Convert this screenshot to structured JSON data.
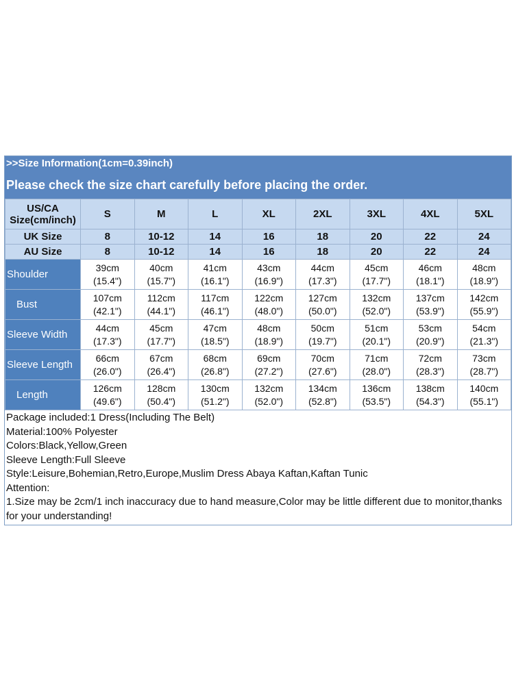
{
  "banner": {
    "line1": ">>Size Information(1cm=0.39inch)",
    "line2": "Please check the size chart carefully before placing the order."
  },
  "header": {
    "us_label_line1": "US/CA",
    "us_label_line2": "Size(cm/inch)",
    "sizes": [
      "S",
      "M",
      "L",
      "XL",
      "2XL",
      "3XL",
      "4XL",
      "5XL"
    ]
  },
  "uk": {
    "label": "UK Size",
    "values": [
      "8",
      "10-12",
      "14",
      "16",
      "18",
      "20",
      "22",
      "24"
    ]
  },
  "au": {
    "label": "AU Size",
    "values": [
      "8",
      "10-12",
      "14",
      "16",
      "18",
      "20",
      "22",
      "24"
    ]
  },
  "measurements": [
    {
      "label": "Shoulder",
      "cm": [
        "39cm",
        "40cm",
        "41cm",
        "43cm",
        "44cm",
        "45cm",
        "46cm",
        "48cm"
      ],
      "in": [
        "(15.4\")",
        "(15.7\")",
        "(16.1\")",
        "(16.9\")",
        "(17.3\")",
        "(17.7\")",
        "(18.1\")",
        "(18.9\")"
      ]
    },
    {
      "label": "Bust",
      "cm": [
        "107cm",
        "112cm",
        "117cm",
        "122cm",
        "127cm",
        "132cm",
        "137cm",
        "142cm"
      ],
      "in": [
        "(42.1\")",
        "(44.1\")",
        "(46.1\")",
        "(48.0\")",
        "(50.0\")",
        "(52.0\")",
        "(53.9\")",
        "(55.9\")"
      ]
    },
    {
      "label": "Sleeve Width",
      "cm": [
        "44cm",
        "45cm",
        "47cm",
        "48cm",
        "50cm",
        "51cm",
        "53cm",
        "54cm"
      ],
      "in": [
        "(17.3\")",
        "(17.7\")",
        "(18.5\")",
        "(18.9\")",
        "(19.7\")",
        "(20.1\")",
        "(20.9\")",
        "(21.3\")"
      ]
    },
    {
      "label": "Sleeve Length",
      "cm": [
        "66cm",
        "67cm",
        "68cm",
        "69cm",
        "70cm",
        "71cm",
        "72cm",
        "73cm"
      ],
      "in": [
        "(26.0\")",
        "(26.4\")",
        "(26.8\")",
        "(27.2\")",
        "(27.6\")",
        "(28.0\")",
        "(28.3\")",
        "(28.7\")"
      ]
    },
    {
      "label": "Length",
      "cm": [
        "126cm",
        "128cm",
        "130cm",
        "132cm",
        "134cm",
        "136cm",
        "138cm",
        "140cm"
      ],
      "in": [
        "(49.6\")",
        "(50.4\")",
        "(51.2\")",
        "(52.0\")",
        "(52.8\")",
        "(53.5\")",
        "(54.3\")",
        "(55.1\")"
      ]
    }
  ],
  "notes": {
    "package": "Package included:1 Dress(Including The Belt)",
    "material": "Material:100% Polyester",
    "colors": "Colors:Black,Yellow,Green",
    "sleeve": "Sleeve Length:Full Sleeve",
    "style": "Style:Leisure,Bohemian,Retro,Europe,Muslim Dress Abaya Kaftan,Kaftan Tunic",
    "attention": "Attention:",
    "disclaimer": "1.Size may be 2cm/1 inch inaccuracy due to hand measure,Color may be little different due to monitor,thanks for your understanding!"
  }
}
